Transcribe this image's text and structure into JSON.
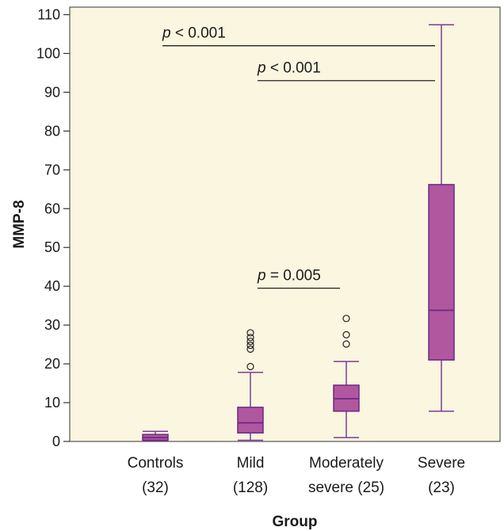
{
  "chart_data": {
    "type": "box",
    "title": "",
    "xlabel": "Group",
    "ylabel": "MMP-8",
    "ylim": [
      0,
      110
    ],
    "yticks": [
      0,
      10,
      20,
      30,
      40,
      50,
      60,
      70,
      80,
      90,
      100,
      110
    ],
    "grid": false,
    "colors": {
      "plot_background": "#fbf6df",
      "box_fill": "#b1579f",
      "box_stroke": "#6a2a86",
      "whisker": "#7a3e98",
      "outlier": "#222222"
    },
    "groups": [
      {
        "name": "Controls",
        "n_label": "(32)",
        "whisker_low": 0.2,
        "q1": 0.3,
        "median": 1.0,
        "q3": 1.8,
        "whisker_high": 2.6,
        "outliers": []
      },
      {
        "name": "Mild",
        "n_label": "(128)",
        "whisker_low": 0.3,
        "q1": 2.2,
        "median": 4.8,
        "q3": 8.8,
        "whisker_high": 17.8,
        "outliers": [
          19.3,
          23.8,
          24.8,
          25.8,
          26.8,
          28.0
        ]
      },
      {
        "name": "Moderately\nsevere",
        "n_label": "(25)",
        "whisker_low": 1.0,
        "q1": 7.8,
        "median": 11.0,
        "q3": 14.5,
        "whisker_high": 20.6,
        "outliers": [
          25.1,
          27.5,
          31.7
        ]
      },
      {
        "name": "Severe",
        "n_label": "(23)",
        "whisker_low": 7.8,
        "q1": 21.0,
        "median": 33.8,
        "q3": 66.2,
        "whisker_high": 107.4,
        "outliers": []
      }
    ],
    "annotations": [
      {
        "p_symbol": "p",
        "rest": " < 0.001",
        "from_group": 0,
        "to_group": 3,
        "y": 102.0
      },
      {
        "p_symbol": "p",
        "rest": " < 0.001",
        "from_group": 1,
        "to_group": 3,
        "y": 93.0
      },
      {
        "p_symbol": "p",
        "rest": " = 0.005",
        "from_group": 1,
        "to_group": 2,
        "y": 39.5
      }
    ]
  }
}
